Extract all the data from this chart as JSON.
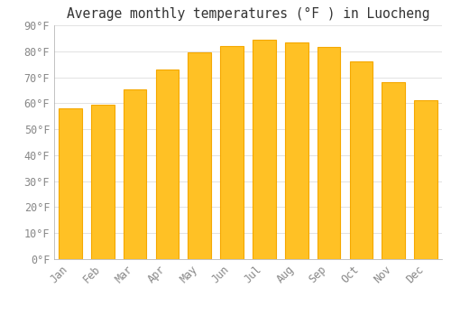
{
  "title": "Average monthly temperatures (°F ) in Luocheng",
  "months": [
    "Jan",
    "Feb",
    "Mar",
    "Apr",
    "May",
    "Jun",
    "Jul",
    "Aug",
    "Sep",
    "Oct",
    "Nov",
    "Dec"
  ],
  "values": [
    58,
    59.5,
    65.5,
    73,
    79.5,
    82,
    84.5,
    83.5,
    81.5,
    76,
    68,
    61
  ],
  "bar_color_face": "#FFC125",
  "bar_color_edge": "#F5A800",
  "ylim": [
    0,
    90
  ],
  "yticks": [
    0,
    10,
    20,
    30,
    40,
    50,
    60,
    70,
    80,
    90
  ],
  "background_color": "#FFFFFF",
  "grid_color": "#DDDDDD",
  "title_fontsize": 10.5,
  "tick_fontsize": 8.5,
  "font_family": "monospace",
  "tick_color": "#888888",
  "title_color": "#333333"
}
